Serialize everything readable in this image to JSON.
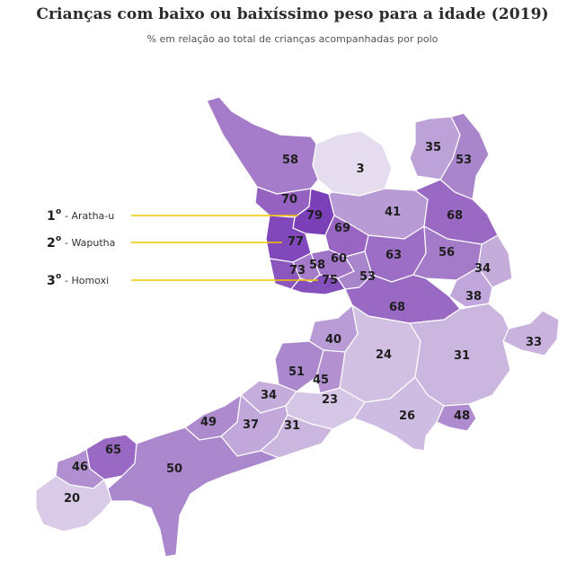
{
  "header": {
    "title": "Crianças com baixo ou baixíssimo peso para a idade (2019)",
    "subtitle": "% em relação ao total de crianças acompanhadas por polo"
  },
  "colors": {
    "scale_lightest": "#e6dcef",
    "scale_darkest": "#7b3fb8",
    "callout_line": "#f2c500"
  },
  "rankings": [
    {
      "rank": "1",
      "sup": "o",
      "label": "- Aratha-u"
    },
    {
      "rank": "2",
      "sup": "o",
      "label": "- Waputha"
    },
    {
      "rank": "3",
      "sup": "o",
      "label": "- Homoxi"
    }
  ],
  "regions": [
    {
      "value": "58",
      "color": "#a57cc9"
    },
    {
      "value": "3",
      "color": "#e6dcef"
    },
    {
      "value": "35",
      "color": "#bda2d8"
    },
    {
      "value": "53",
      "color": "#a985cc"
    },
    {
      "value": "70",
      "color": "#9562c1"
    },
    {
      "value": "79",
      "color": "#7b3fb8"
    },
    {
      "value": "41",
      "color": "#b89ad5"
    },
    {
      "value": "68",
      "color": "#9a69c3"
    },
    {
      "value": "69",
      "color": "#9866c2"
    },
    {
      "value": "77",
      "color": "#8048ba"
    },
    {
      "value": "63",
      "color": "#9d6ec6"
    },
    {
      "value": "56",
      "color": "#a47bc8"
    },
    {
      "value": "60",
      "color": "#a074c7"
    },
    {
      "value": "58",
      "color": "#a57cc9"
    },
    {
      "value": "73",
      "color": "#8b56be"
    },
    {
      "value": "75",
      "color": "#854fbc"
    },
    {
      "value": "53",
      "color": "#a985cc"
    },
    {
      "value": "34",
      "color": "#c4acdb"
    },
    {
      "value": "38",
      "color": "#c0a6da"
    },
    {
      "value": "68",
      "color": "#9a69c3"
    },
    {
      "value": "33",
      "color": "#c9b3de"
    },
    {
      "value": "40",
      "color": "#b99cd6"
    },
    {
      "value": "24",
      "color": "#d2c0e3"
    },
    {
      "value": "31",
      "color": "#cbb6df"
    },
    {
      "value": "51",
      "color": "#ab88cd"
    },
    {
      "value": "45",
      "color": "#b391d1"
    },
    {
      "value": "34",
      "color": "#c4acdb"
    },
    {
      "value": "23",
      "color": "#d6c6e6"
    },
    {
      "value": "26",
      "color": "#cfbce2"
    },
    {
      "value": "48",
      "color": "#ae8ccf"
    },
    {
      "value": "49",
      "color": "#ad8ace"
    },
    {
      "value": "37",
      "color": "#c2a8da"
    },
    {
      "value": "31",
      "color": "#cbb6df"
    },
    {
      "value": "65",
      "color": "#9a69c3"
    },
    {
      "value": "46",
      "color": "#b18fd0"
    },
    {
      "value": "50",
      "color": "#ab87cd"
    },
    {
      "value": "20",
      "color": "#d9cae8"
    }
  ]
}
